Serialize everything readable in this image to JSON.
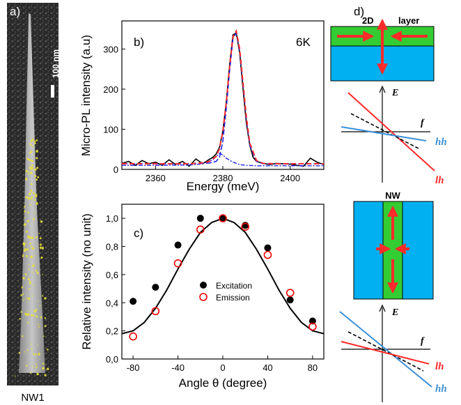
{
  "panel_labels": {
    "a": "a)",
    "b": "b)",
    "c": "c)",
    "d": "d)"
  },
  "panel_a": {
    "scale_bar": "100 nm",
    "caption": "NW1"
  },
  "panel_d": {
    "top_label_2d": "2D",
    "top_label_layer": "layer",
    "top_axis_E": "E",
    "top_axis_f": "f",
    "top_hh": "hh",
    "top_lh": "lh",
    "nw_label": "NW",
    "bottom_axis_E": "E",
    "bottom_axis_f": "f",
    "bottom_lh": "lh",
    "bottom_hh": "hh"
  },
  "colors": {
    "green": "#33cc33",
    "blue": "#00b0f0",
    "arrow": "#ff2a2a",
    "hh_blue": "#3b8fd6",
    "fit_blue": "#2222ee"
  },
  "chart_data": [
    {
      "type": "line",
      "panel": "b",
      "annotation": "6K",
      "xlabel": "Energy (meV)",
      "ylabel": "Micro-PL intensity (a.u)",
      "xlim": [
        2350,
        2410
      ],
      "ylim": [
        0,
        370
      ],
      "xticks": [
        "2360",
        "2380",
        "2400"
      ],
      "yticks": [
        "0",
        "100",
        "200",
        "300"
      ],
      "series": [
        {
          "style": "data",
          "x": [
            2350,
            2352,
            2354,
            2356,
            2358,
            2360,
            2362,
            2364,
            2366,
            2368,
            2370,
            2372,
            2374,
            2376,
            2377,
            2378,
            2379,
            2380,
            2381,
            2382,
            2383,
            2384,
            2385,
            2386,
            2387,
            2388,
            2389,
            2390,
            2392,
            2394,
            2396,
            2398,
            2400,
            2402,
            2404,
            2406,
            2408,
            2410
          ],
          "y": [
            15,
            20,
            10,
            22,
            14,
            18,
            10,
            24,
            12,
            20,
            8,
            26,
            14,
            25,
            30,
            38,
            55,
            95,
            165,
            260,
            335,
            340,
            290,
            200,
            115,
            60,
            30,
            20,
            15,
            12,
            15,
            14,
            13,
            10,
            8,
            28,
            18,
            12
          ]
        },
        {
          "style": "fit_total",
          "x": [
            2350,
            2360,
            2370,
            2374,
            2376,
            2378,
            2379,
            2380,
            2381,
            2382,
            2383,
            2384,
            2385,
            2386,
            2387,
            2388,
            2390,
            2392,
            2396,
            2400,
            2410
          ],
          "y": [
            14,
            14,
            14,
            16,
            20,
            32,
            52,
            95,
            165,
            255,
            330,
            345,
            300,
            215,
            130,
            65,
            22,
            15,
            14,
            14,
            14
          ]
        },
        {
          "style": "fit_component_1",
          "x": [
            2350,
            2360,
            2370,
            2374,
            2376,
            2378,
            2379,
            2380,
            2381,
            2382,
            2383,
            2384,
            2385,
            2386,
            2387,
            2388,
            2390,
            2392,
            2396,
            2400,
            2410
          ],
          "y": [
            14,
            14,
            14,
            15,
            16,
            20,
            30,
            70,
            150,
            245,
            325,
            340,
            295,
            210,
            125,
            60,
            20,
            14,
            14,
            14,
            14
          ]
        },
        {
          "style": "fit_component_2",
          "x": [
            2350,
            2360,
            2370,
            2373,
            2375,
            2377,
            2378,
            2379,
            2380,
            2381,
            2383,
            2385,
            2387,
            2390,
            2400,
            2410
          ],
          "y": [
            10,
            10,
            11,
            13,
            17,
            24,
            32,
            40,
            36,
            28,
            18,
            12,
            10,
            9,
            9,
            9
          ]
        }
      ]
    },
    {
      "type": "scatter",
      "panel": "c",
      "xlabel": "Angle θ (degree)",
      "ylabel": "Relative intensity (no unit)",
      "xlim": [
        -90,
        90
      ],
      "ylim": [
        0,
        1.1
      ],
      "xticks": [
        "-80",
        "-40",
        "0",
        "40",
        "80"
      ],
      "yticks": [
        "0,0",
        "0,2",
        "0,4",
        "0,6",
        "0,8",
        "1,0"
      ],
      "legend": [
        "Excitation",
        "Emission"
      ],
      "series": [
        {
          "name": "Excitation",
          "marker": "filled-black",
          "x": [
            -80,
            -60,
            -40,
            -20,
            0,
            20,
            40,
            60,
            80
          ],
          "y": [
            0.41,
            0.51,
            0.81,
            1.0,
            1.0,
            0.95,
            0.79,
            0.42,
            0.27
          ]
        },
        {
          "name": "Emission",
          "marker": "open-red",
          "x": [
            -80,
            -60,
            -40,
            -20,
            0,
            20,
            40,
            60,
            80
          ],
          "y": [
            0.16,
            0.34,
            0.68,
            0.92,
            1.0,
            0.94,
            0.74,
            0.47,
            0.23
          ]
        },
        {
          "name": "",
          "marker": "fit-line",
          "x": [
            -90,
            -80,
            -70,
            -60,
            -50,
            -40,
            -30,
            -20,
            -10,
            0,
            10,
            20,
            30,
            40,
            50,
            60,
            70,
            80,
            90
          ],
          "y": [
            0.18,
            0.2,
            0.26,
            0.36,
            0.49,
            0.64,
            0.78,
            0.9,
            0.97,
            1.0,
            0.97,
            0.9,
            0.78,
            0.64,
            0.49,
            0.36,
            0.26,
            0.2,
            0.18
          ]
        }
      ]
    }
  ]
}
